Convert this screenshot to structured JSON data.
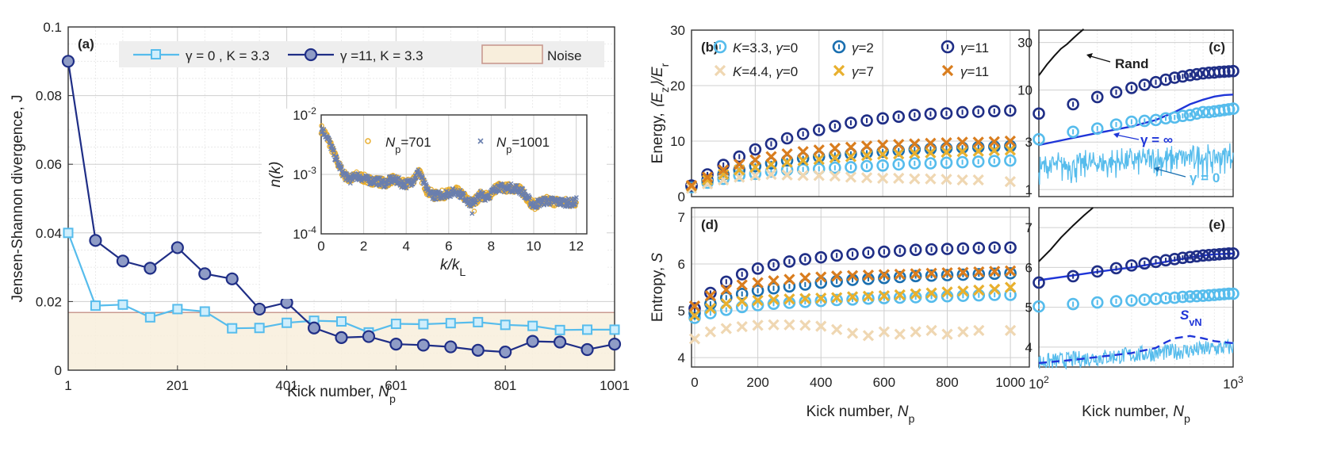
{
  "colors": {
    "gamma0": "#56BCEC",
    "gamma11": "#1F2E86",
    "gamma2": "#1A6FB0",
    "k44": "#EFD7B2",
    "gamma7": "#E8B02E",
    "gamma11b": "#D97D1E",
    "noise_fill": "#F8EEDC",
    "noise_edge": "#C99A90",
    "inset_701": "#E9AE2E",
    "inset_1001": "#6A7FAE",
    "gamma_inf": "#1F35D8",
    "rand": "#111111"
  },
  "chart_data": [
    {
      "id": "a",
      "type": "line",
      "panel_label": "(a)",
      "xlabel_text": "Kick number, ",
      "xlabel_var": "N",
      "xlabel_sub": "p",
      "ylabel": "Jensen-Shannon divergence, J",
      "xlim": [
        1,
        1001
      ],
      "ylim": [
        0,
        0.1
      ],
      "xticks": [
        "1",
        "201",
        "401",
        "601",
        "801",
        "1001"
      ],
      "yticks": [
        "0",
        "0.02",
        "0.04",
        "0.06",
        "0.08",
        "0.1"
      ],
      "noise_level": 0.0168,
      "x": [
        1,
        51,
        101,
        151,
        201,
        251,
        301,
        351,
        401,
        451,
        501,
        551,
        601,
        651,
        701,
        751,
        801,
        851,
        901,
        951,
        1001
      ],
      "series": [
        {
          "name": "γ = 0 , K = 3.3",
          "values": [
            0.04,
            0.0188,
            0.0191,
            0.0154,
            0.0178,
            0.0171,
            0.0122,
            0.0123,
            0.0138,
            0.0144,
            0.0142,
            0.011,
            0.0135,
            0.0134,
            0.0137,
            0.014,
            0.0132,
            0.0129,
            0.0117,
            0.0118,
            0.0118
          ]
        },
        {
          "name": "γ =11, K = 3.3",
          "values": [
            0.09,
            0.0378,
            0.0318,
            0.0297,
            0.0357,
            0.0281,
            0.0266,
            0.0178,
            0.0197,
            0.0123,
            0.0095,
            0.0098,
            0.0076,
            0.0073,
            0.0068,
            0.0058,
            0.0053,
            0.0084,
            0.0082,
            0.006,
            0.0076
          ]
        }
      ],
      "legend": [
        "γ = 0 , K = 3.3",
        "γ =11, K = 3.3",
        "Noise"
      ],
      "inset": {
        "type": "scatter",
        "xlabel_var": "k/k",
        "xlabel_sub": "L",
        "ylabel": "n(k)",
        "xlim": [
          0,
          12.5
        ],
        "ylim_log": [
          -4,
          -2
        ],
        "xticks": [
          "0",
          "2",
          "4",
          "6",
          "8",
          "10",
          "12"
        ],
        "ytick_base": "10",
        "ytick_exps": [
          "-4",
          "-3",
          "-2"
        ],
        "legend_var": "N",
        "legend_sub": "p",
        "legend": [
          "=701",
          "=1001"
        ],
        "profile_x": [
          0.0,
          0.2,
          0.4,
          0.6,
          0.8,
          1.0,
          1.2,
          1.4,
          1.6,
          1.8,
          2.0,
          2.2,
          2.5,
          2.8,
          3.0,
          3.3,
          3.6,
          3.8,
          4.0,
          4.3,
          4.5,
          4.6,
          4.8,
          5.0,
          5.3,
          5.6,
          6.0,
          6.4,
          6.8,
          7.0,
          7.2,
          7.5,
          7.8,
          8.0,
          8.3,
          8.6,
          8.9,
          9.2,
          9.5,
          9.8,
          10.0,
          10.3,
          10.6,
          11.0,
          11.4,
          11.8,
          12.0
        ],
        "profile_y": [
          0.0058,
          0.0048,
          0.0034,
          0.0022,
          0.0015,
          0.0011,
          0.00088,
          0.00082,
          0.00095,
          0.00092,
          0.00086,
          0.0008,
          0.00078,
          0.00075,
          0.0007,
          0.00082,
          0.00078,
          0.0007,
          0.00068,
          0.00078,
          0.001,
          0.0011,
          0.00075,
          0.00052,
          0.00044,
          0.00045,
          0.00048,
          0.00052,
          0.0004,
          0.00032,
          0.00035,
          0.00045,
          0.00042,
          0.00048,
          0.00062,
          0.00058,
          0.0006,
          0.00058,
          0.0005,
          0.00036,
          0.0003,
          0.00034,
          0.00036,
          0.00035,
          0.00034,
          0.00033,
          0.00035
        ]
      }
    },
    {
      "id": "b",
      "type": "scatter",
      "panel_label": "(b)",
      "ylabel_text": "Energy, ",
      "ylabel_var": "⟨E",
      "ylabel_sub": "z",
      "ylabel_rest": "⟩/E",
      "ylabel_sub2": "r",
      "xlim": [
        0,
        1060
      ],
      "ylim": [
        0,
        30
      ],
      "yticks": [
        "0",
        "10",
        "20",
        "30"
      ],
      "xticks": [],
      "x": [
        0,
        50,
        100,
        150,
        200,
        250,
        300,
        350,
        400,
        450,
        500,
        550,
        600,
        650,
        700,
        750,
        800,
        850,
        900,
        950,
        1000
      ],
      "series": [
        {
          "name": "K=3.3, γ=0",
          "marker": "circle",
          "values": [
            1.7,
            2.5,
            3.2,
            3.8,
            4.1,
            4.5,
            4.8,
            4.9,
            5.0,
            5.2,
            5.3,
            5.5,
            5.6,
            5.8,
            6.0,
            6.0,
            6.1,
            6.2,
            6.3,
            6.4,
            6.5
          ]
        },
        {
          "name": "γ=2",
          "marker": "circle",
          "values": [
            1.9,
            3.0,
            4.0,
            4.8,
            5.5,
            6.0,
            6.5,
            6.9,
            7.2,
            7.5,
            7.7,
            7.9,
            8.1,
            8.3,
            8.5,
            8.6,
            8.7,
            8.8,
            8.9,
            9.0,
            9.1
          ]
        },
        {
          "name": "γ=11",
          "marker": "circle",
          "values": [
            2.0,
            4.0,
            5.7,
            7.2,
            8.5,
            9.5,
            10.5,
            11.3,
            12.0,
            12.7,
            13.3,
            13.7,
            14.1,
            14.4,
            14.7,
            14.9,
            15.0,
            15.2,
            15.3,
            15.4,
            15.5
          ]
        },
        {
          "name": "K=4.4, γ=0",
          "marker": "cross",
          "values": [
            1.5,
            2.3,
            3.0,
            3.5,
            3.8,
            4.0,
            3.9,
            3.8,
            3.8,
            3.7,
            3.5,
            3.4,
            3.3,
            3.3,
            3.2,
            3.2,
            3.1,
            3.0,
            3.0,
            2.9,
            2.7
          ]
        },
        {
          "name": "γ=7",
          "marker": "cross",
          "values": [
            1.9,
            3.0,
            4.0,
            4.8,
            5.3,
            5.8,
            6.2,
            6.5,
            6.7,
            7.0,
            7.2,
            7.4,
            7.6,
            7.7,
            7.8,
            7.9,
            8.0,
            8.1,
            8.2,
            8.3,
            8.4
          ]
        },
        {
          "name": "γ=11",
          "marker": "cross",
          "values": [
            2.0,
            3.5,
            4.8,
            5.8,
            6.6,
            7.2,
            7.7,
            8.1,
            8.4,
            8.7,
            8.9,
            9.1,
            9.3,
            9.4,
            9.5,
            9.6,
            9.7,
            9.8,
            9.8,
            9.9,
            10.0
          ]
        }
      ],
      "legend": [
        "K=3.3, γ=0",
        "γ=2",
        "γ=11",
        "K=4.4, γ=0",
        "γ=7",
        "γ=11"
      ]
    },
    {
      "id": "c",
      "type": "line",
      "panel_label": "(c)",
      "xscale": "log",
      "yscale": "log",
      "xlim": [
        100,
        1000
      ],
      "ylim": [
        0.85,
        40
      ],
      "yticks": [
        "1",
        "3",
        "10",
        "30"
      ],
      "annotations": [
        "Rand",
        "γ = ∞",
        "γ = 0"
      ],
      "rand_x": [
        100,
        110,
        120,
        130,
        140,
        150,
        160,
        170
      ],
      "rand_y": [
        14,
        18,
        22,
        26,
        29,
        33,
        37,
        41
      ],
      "gamma_inf_x": [
        100,
        150,
        200,
        300,
        400,
        500,
        600,
        700,
        800,
        900,
        1000
      ],
      "gamma_inf_y": [
        2.8,
        3.3,
        3.7,
        4.3,
        5.0,
        6.0,
        7.2,
        8.0,
        8.6,
        8.9,
        9.0
      ],
      "gamma11_x": [
        100,
        150,
        200,
        250,
        300,
        350,
        400,
        450,
        500,
        550,
        600,
        650,
        700,
        750,
        800,
        850,
        900,
        950,
        1000
      ],
      "gamma11_y": [
        5.8,
        7.2,
        8.5,
        9.5,
        10.5,
        11.3,
        12.0,
        12.7,
        13.3,
        13.7,
        14.1,
        14.4,
        14.7,
        14.9,
        15.0,
        15.2,
        15.3,
        15.4,
        15.5
      ],
      "gamma0_x": [
        100,
        150,
        200,
        250,
        300,
        350,
        400,
        450,
        500,
        550,
        600,
        650,
        700,
        750,
        800,
        850,
        900,
        950,
        1000
      ],
      "gamma0_y": [
        3.2,
        3.8,
        4.1,
        4.5,
        4.8,
        4.9,
        5.0,
        5.2,
        5.3,
        5.5,
        5.6,
        5.8,
        6.0,
        6.0,
        6.1,
        6.2,
        6.3,
        6.4,
        6.5
      ]
    },
    {
      "id": "d",
      "type": "scatter",
      "panel_label": "(d)",
      "xlabel_text": "Kick number, ",
      "xlabel_var": "N",
      "xlabel_sub": "p",
      "ylabel_text": "Entropy, ",
      "ylabel_var": "S",
      "xlim": [
        -10,
        1060
      ],
      "ylim": [
        3.8,
        7.2
      ],
      "yticks": [
        "4",
        "5",
        "6",
        "7"
      ],
      "xticks": [
        "0",
        "200",
        "400",
        "600",
        "800",
        "1000"
      ],
      "x": [
        0,
        50,
        100,
        150,
        200,
        250,
        300,
        350,
        400,
        450,
        500,
        550,
        600,
        650,
        700,
        750,
        800,
        850,
        900,
        950,
        1000
      ],
      "series": [
        {
          "name": "K=3.3, γ=0",
          "marker": "circle",
          "values": [
            4.85,
            4.95,
            5.02,
            5.08,
            5.12,
            5.15,
            5.17,
            5.19,
            5.21,
            5.23,
            5.24,
            5.26,
            5.27,
            5.28,
            5.29,
            5.3,
            5.31,
            5.32,
            5.33,
            5.34,
            5.34
          ]
        },
        {
          "name": "γ=2",
          "marker": "circle",
          "values": [
            4.95,
            5.15,
            5.28,
            5.36,
            5.43,
            5.48,
            5.52,
            5.56,
            5.6,
            5.63,
            5.66,
            5.68,
            5.7,
            5.72,
            5.74,
            5.75,
            5.76,
            5.77,
            5.78,
            5.79,
            5.8
          ]
        },
        {
          "name": "γ=11",
          "marker": "circle",
          "values": [
            5.05,
            5.38,
            5.62,
            5.78,
            5.9,
            5.98,
            6.05,
            6.1,
            6.14,
            6.18,
            6.21,
            6.24,
            6.26,
            6.28,
            6.3,
            6.31,
            6.32,
            6.33,
            6.34,
            6.35,
            6.35
          ]
        },
        {
          "name": "K=4.4, γ=0",
          "marker": "cross",
          "values": [
            4.4,
            4.55,
            4.62,
            4.66,
            4.69,
            4.7,
            4.7,
            4.69,
            4.67,
            4.6,
            4.52,
            4.47,
            4.55,
            4.5,
            4.55,
            4.58,
            4.5,
            4.55,
            4.58,
            4.52,
            4.58
          ]
        },
        {
          "name": "γ=7",
          "marker": "cross",
          "values": [
            4.9,
            5.05,
            5.15,
            5.2,
            5.22,
            5.24,
            5.25,
            5.26,
            5.27,
            5.28,
            5.3,
            5.31,
            5.32,
            5.34,
            5.36,
            5.38,
            5.4,
            5.42,
            5.44,
            5.46,
            5.5
          ]
        },
        {
          "name": "γ=11",
          "marker": "cross",
          "values": [
            5.1,
            5.32,
            5.45,
            5.55,
            5.6,
            5.64,
            5.67,
            5.7,
            5.72,
            5.74,
            5.75,
            5.76,
            5.77,
            5.78,
            5.79,
            5.8,
            5.81,
            5.82,
            5.83,
            5.84,
            5.85
          ]
        }
      ]
    },
    {
      "id": "e",
      "type": "line",
      "panel_label": "(e)",
      "xscale": "log",
      "xlabel_text": "Kick number, ",
      "xlabel_var": "N",
      "xlabel_sub": "p",
      "xlim": [
        100,
        1000
      ],
      "ylim": [
        3.5,
        7.5
      ],
      "yticks": [
        "4",
        "5",
        "6",
        "7"
      ],
      "xtick_base": "10",
      "xtick_exps": [
        "2",
        "3"
      ],
      "annotation_var": "S",
      "annotation_sub": "vN",
      "rand_x": [
        100,
        115,
        130,
        150,
        170,
        190
      ],
      "rand_y": [
        6.15,
        6.45,
        6.75,
        7.05,
        7.3,
        7.5
      ],
      "gamma_inf_x": [
        100,
        150,
        200,
        300,
        400,
        500,
        600,
        700,
        800,
        900,
        1000
      ],
      "gamma_inf_y": [
        5.68,
        5.8,
        5.89,
        6.0,
        6.1,
        6.18,
        6.25,
        6.3,
        6.33,
        6.34,
        6.35
      ],
      "svn_x": [
        100,
        150,
        200,
        300,
        400,
        450,
        500,
        600,
        700,
        800,
        900,
        1000
      ],
      "svn_y": [
        3.6,
        3.68,
        3.75,
        3.85,
        3.98,
        4.12,
        4.22,
        4.28,
        4.22,
        4.15,
        4.12,
        4.1
      ],
      "gamma11_x": [
        100,
        150,
        200,
        250,
        300,
        350,
        400,
        450,
        500,
        550,
        600,
        650,
        700,
        750,
        800,
        850,
        900,
        950,
        1000
      ],
      "gamma11_y": [
        5.62,
        5.78,
        5.9,
        5.98,
        6.05,
        6.1,
        6.14,
        6.18,
        6.21,
        6.24,
        6.26,
        6.28,
        6.3,
        6.31,
        6.32,
        6.33,
        6.34,
        6.35,
        6.35
      ],
      "gamma0_x": [
        100,
        150,
        200,
        250,
        300,
        350,
        400,
        450,
        500,
        550,
        600,
        650,
        700,
        750,
        800,
        850,
        900,
        950,
        1000
      ],
      "gamma0_y": [
        5.02,
        5.08,
        5.12,
        5.15,
        5.17,
        5.19,
        5.21,
        5.23,
        5.24,
        5.26,
        5.27,
        5.28,
        5.29,
        5.3,
        5.31,
        5.32,
        5.33,
        5.34,
        5.34
      ]
    }
  ]
}
